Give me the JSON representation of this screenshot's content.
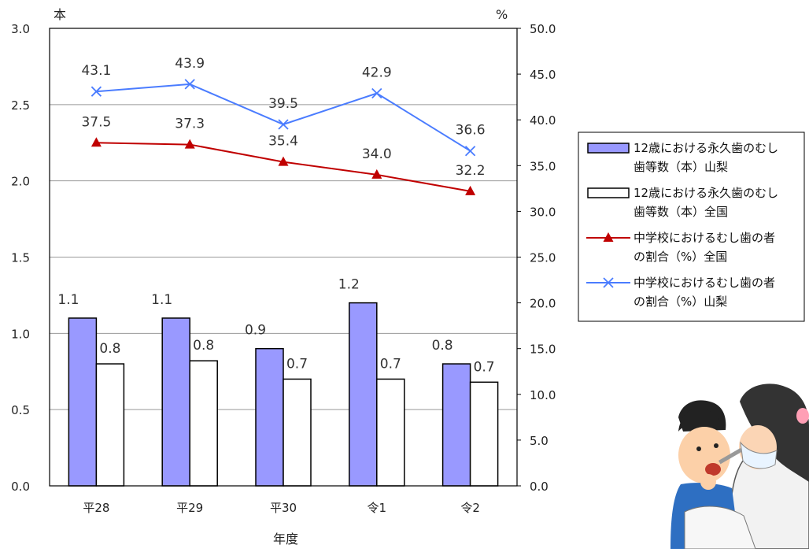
{
  "chart_data": {
    "type": "bar",
    "categories": [
      "平28",
      "平29",
      "平30",
      "令1",
      "令2"
    ],
    "xlabel": "年度",
    "y_left": {
      "unit": "本",
      "range": [
        0,
        3.0
      ],
      "ticks": [
        "0.0",
        "0.5",
        "1.0",
        "1.5",
        "2.0",
        "2.5",
        "3.0"
      ]
    },
    "y_right": {
      "unit": "%",
      "range": [
        0,
        50.0
      ],
      "ticks": [
        "0.0",
        "5.0",
        "10.0",
        "15.0",
        "20.0",
        "25.0",
        "30.0",
        "35.0",
        "40.0",
        "45.0",
        "50.0"
      ]
    },
    "grid": true,
    "legend_position": "right",
    "series": [
      {
        "name_lines": [
          "12歳における永久歯のむし",
          "歯等数（本）山梨"
        ],
        "type": "bar",
        "axis": "left",
        "color": "#9999ff",
        "values": [
          1.1,
          1.1,
          0.9,
          1.2,
          0.8
        ],
        "labels": [
          "1.1",
          "1.1",
          "0.9",
          "1.2",
          "0.8"
        ]
      },
      {
        "name_lines": [
          "12歳における永久歯のむし",
          "歯等数（本）全国"
        ],
        "type": "bar",
        "axis": "left",
        "color": "#ffffff",
        "values": [
          0.8,
          0.82,
          0.7,
          0.7,
          0.68
        ],
        "labels": [
          "0.8",
          "0.8",
          "0.7",
          "0.7",
          "0.7"
        ]
      },
      {
        "name_lines": [
          "中学校におけるむし歯の者",
          "の割合（%）全国"
        ],
        "type": "line",
        "axis": "right",
        "color": "#c00000",
        "marker": "triangle",
        "values": [
          37.5,
          37.3,
          35.4,
          34.0,
          32.2
        ],
        "labels": [
          "37.5",
          "37.3",
          "35.4",
          "34.0",
          "32.2"
        ]
      },
      {
        "name_lines": [
          "中学校におけるむし歯の者",
          "の割合（%）山梨"
        ],
        "type": "line",
        "axis": "right",
        "color": "#4a7cff",
        "marker": "x",
        "values": [
          43.1,
          43.9,
          39.5,
          42.9,
          36.6
        ],
        "labels": [
          "43.1",
          "43.9",
          "39.5",
          "42.9",
          "36.6"
        ]
      }
    ]
  },
  "illustration": {
    "icon": "dentist-checkup-illustration"
  }
}
